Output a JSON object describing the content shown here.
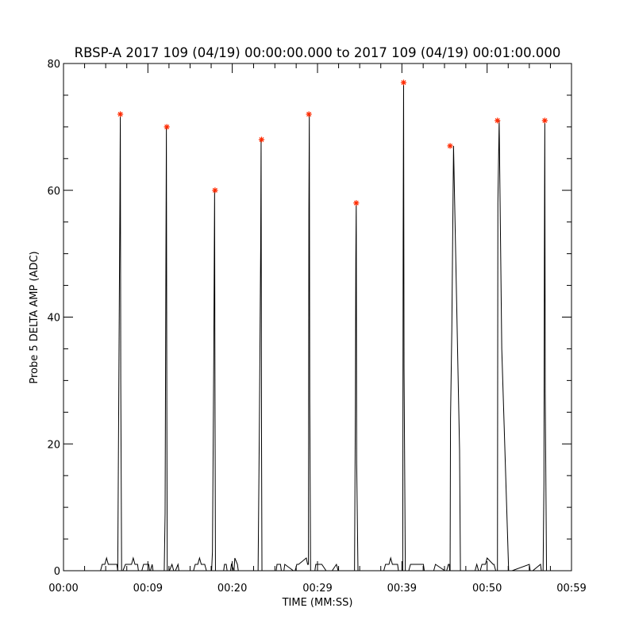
{
  "chart_data": {
    "type": "line",
    "title": "RBSP-A 2017 109 (04/19) 00:00:00.000 to 2017 109 (04/19) 00:01:00.000",
    "xlabel": "TIME (MM:SS)",
    "ylabel": "Probe 5 DELTA AMP (ADC)",
    "xlim": [
      0,
      59
    ],
    "ylim": [
      0,
      80
    ],
    "x_ticks": [
      {
        "value": 0,
        "label": "00:00"
      },
      {
        "value": 9.8,
        "label": "00:09"
      },
      {
        "value": 19.6,
        "label": "00:20"
      },
      {
        "value": 29.5,
        "label": "00:29"
      },
      {
        "value": 39.3,
        "label": "00:39"
      },
      {
        "value": 49.2,
        "label": "00:50"
      },
      {
        "value": 59,
        "label": "00:59"
      }
    ],
    "y_ticks": [
      {
        "value": 0,
        "label": "0"
      },
      {
        "value": 20,
        "label": "20"
      },
      {
        "value": 40,
        "label": "40"
      },
      {
        "value": 60,
        "label": "60"
      },
      {
        "value": 80,
        "label": "80"
      }
    ],
    "line_color": "#000000",
    "marker_color": "#ff2a00",
    "peaks": {
      "x": [
        6.6,
        12.0,
        17.6,
        23.0,
        28.5,
        34.0,
        39.5,
        44.9,
        50.4,
        55.9
      ],
      "y": [
        72,
        70,
        60,
        68,
        72,
        58,
        77,
        67,
        71,
        71
      ]
    },
    "series": [
      {
        "x": [
          0,
          4.3,
          4.5,
          4.8,
          5.0,
          5.2,
          5.4,
          6.2,
          6.3,
          6.4,
          6.55,
          6.6,
          6.65,
          6.75,
          6.9,
          7.2,
          7.4,
          7.9,
          8.1,
          8.3,
          8.4,
          8.6,
          8.7,
          9.1,
          9.3,
          9.9,
          10.0,
          10.1,
          10.3,
          10.4,
          11.7,
          11.8,
          11.9,
          11.95,
          12.0,
          12.05,
          12.15,
          12.3,
          12.6,
          12.8,
          13.0,
          13.3,
          13.4,
          15.1,
          15.3,
          15.6,
          15.8,
          16.0,
          16.4,
          16.6,
          17.2,
          17.3,
          17.45,
          17.55,
          17.6,
          17.65,
          17.75,
          17.9,
          18.6,
          18.7,
          18.9,
          19.0,
          19.4,
          19.5,
          19.8,
          19.9,
          20.2,
          20.3,
          22.6,
          22.75,
          22.9,
          22.95,
          23.0,
          23.05,
          23.2,
          23.4,
          24.7,
          24.8,
          25.2,
          25.3,
          25.6,
          25.7,
          26.7,
          26.9,
          27.1,
          27.3,
          28.2,
          28.35,
          28.45,
          28.5,
          28.55,
          28.6,
          28.7,
          28.9,
          29.2,
          29.3,
          29.6,
          29.8,
          30.0,
          30.5,
          31.0,
          31.2,
          31.7,
          31.9,
          33.65,
          33.8,
          33.9,
          33.95,
          34.0,
          34.05,
          34.2,
          34.5,
          37.2,
          37.4,
          37.8,
          38.0,
          38.2,
          38.8,
          38.9,
          39.35,
          39.4,
          39.45,
          39.5,
          39.55,
          39.7,
          39.9,
          40.1,
          40.3,
          40.5,
          40.6,
          41.8,
          41.9,
          43.0,
          43.2,
          44.3,
          44.5,
          44.7,
          44.8,
          44.85,
          44.9,
          44.95,
          45.1,
          45.3,
          46.0,
          46.1,
          46.3,
          46.4,
          47.8,
          48.0,
          48.2,
          48.4,
          48.6,
          49.0,
          49.2,
          49.9,
          50.0,
          50.2,
          50.35,
          50.4,
          50.45,
          50.6,
          50.9,
          51.7,
          51.8,
          52.0,
          52.1,
          54.1,
          54.2,
          54.4,
          54.5,
          55.4,
          55.5,
          55.7,
          55.8,
          55.85,
          55.9,
          55.95,
          56.1,
          56.3,
          59
        ],
        "y": [
          0,
          0,
          1,
          1,
          2,
          1,
          1,
          1,
          0,
          23,
          58,
          72,
          30,
          0,
          0,
          1,
          1,
          1,
          2,
          1,
          1,
          1,
          0,
          0,
          1,
          1,
          0,
          0,
          1,
          0,
          0,
          9,
          51,
          70,
          26,
          0,
          0,
          0,
          1,
          0,
          0,
          1,
          0,
          0,
          1,
          1,
          2,
          1,
          1,
          0,
          0,
          3,
          33,
          60,
          24,
          0,
          0,
          0,
          0,
          1,
          1,
          0,
          0,
          1,
          0,
          2,
          1,
          0,
          0,
          23,
          51,
          68,
          21,
          0,
          0,
          0,
          0,
          1,
          1,
          0,
          0,
          1,
          0,
          0,
          1,
          1,
          2,
          1,
          1,
          57,
          72,
          27,
          0,
          0,
          0,
          1,
          1,
          1,
          1,
          0,
          0,
          0,
          1,
          0,
          0,
          0,
          26,
          49,
          58,
          17,
          0,
          0,
          0,
          1,
          1,
          2,
          1,
          1,
          0,
          0,
          0,
          53,
          77,
          32,
          0,
          0,
          0,
          1,
          1,
          1,
          1,
          0,
          0,
          1,
          0,
          0,
          1,
          1,
          0,
          0,
          24,
          38,
          67,
          19,
          0,
          0,
          0,
          0,
          1,
          0,
          0,
          1,
          1,
          2,
          1,
          1,
          0,
          0,
          0,
          58,
          71,
          35,
          0,
          0,
          0,
          0,
          1,
          0,
          0,
          0,
          1,
          0,
          0,
          14,
          49,
          71,
          28,
          0,
          0,
          0
        ]
      }
    ]
  }
}
